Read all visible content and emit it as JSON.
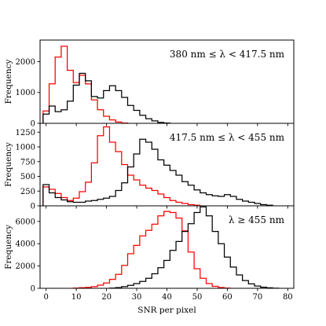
{
  "chart_data": {
    "type": "histogram",
    "x_label": "SNR per pixel",
    "x_ticks": [
      0,
      10,
      20,
      30,
      40,
      50,
      60,
      70,
      80
    ],
    "xlim": [
      -2,
      82
    ],
    "bin_width": 2,
    "colors": {
      "red": "#ff0000",
      "black": "#000000"
    },
    "panels": [
      {
        "annotation": "380 nm ≤ λ < 417.5 nm",
        "ylabel": "Frequency",
        "ylim": [
          0,
          2700
        ],
        "yticks": [
          0,
          1000,
          2000
        ],
        "series": [
          {
            "color": "red",
            "bins": [
              [
                -1,
                1,
                400
              ],
              [
                1,
                3,
                1280
              ],
              [
                3,
                5,
                2150
              ],
              [
                5,
                7,
                2500
              ],
              [
                7,
                9,
                1720
              ],
              [
                9,
                11,
                1320
              ],
              [
                11,
                13,
                1560
              ],
              [
                13,
                15,
                1280
              ],
              [
                15,
                17,
                760
              ],
              [
                17,
                19,
                440
              ],
              [
                19,
                21,
                230
              ],
              [
                21,
                23,
                110
              ],
              [
                23,
                25,
                40
              ],
              [
                25,
                27,
                10
              ]
            ]
          },
          {
            "color": "black",
            "bins": [
              [
                -1,
                1,
                300
              ],
              [
                1,
                3,
                560
              ],
              [
                3,
                5,
                380
              ],
              [
                5,
                7,
                440
              ],
              [
                7,
                9,
                720
              ],
              [
                9,
                11,
                1240
              ],
              [
                11,
                13,
                1620
              ],
              [
                13,
                15,
                1380
              ],
              [
                15,
                17,
                870
              ],
              [
                17,
                19,
                820
              ],
              [
                19,
                21,
                1060
              ],
              [
                21,
                23,
                1220
              ],
              [
                23,
                25,
                1060
              ],
              [
                25,
                27,
                840
              ],
              [
                27,
                29,
                580
              ],
              [
                29,
                31,
                420
              ],
              [
                31,
                33,
                260
              ],
              [
                33,
                35,
                150
              ],
              [
                35,
                37,
                80
              ],
              [
                37,
                39,
                30
              ],
              [
                39,
                41,
                10
              ]
            ]
          }
        ]
      },
      {
        "annotation": "417.5 nm ≤ λ < 455 nm",
        "ylabel": "Frequency",
        "ylim": [
          0,
          1400
        ],
        "yticks": [
          0,
          250,
          500,
          750,
          1000,
          1250
        ],
        "series": [
          {
            "color": "red",
            "bins": [
              [
                -1,
                1,
                320
              ],
              [
                1,
                3,
                280
              ],
              [
                3,
                5,
                210
              ],
              [
                5,
                7,
                140
              ],
              [
                7,
                9,
                90
              ],
              [
                9,
                11,
                130
              ],
              [
                11,
                13,
                240
              ],
              [
                13,
                15,
                400
              ],
              [
                15,
                17,
                730
              ],
              [
                17,
                19,
                1190
              ],
              [
                19,
                21,
                1340
              ],
              [
                21,
                23,
                1080
              ],
              [
                23,
                25,
                920
              ],
              [
                25,
                27,
                700
              ],
              [
                27,
                29,
                520
              ],
              [
                29,
                31,
                440
              ],
              [
                31,
                33,
                350
              ],
              [
                33,
                35,
                300
              ],
              [
                35,
                37,
                260
              ],
              [
                37,
                39,
                200
              ],
              [
                39,
                41,
                140
              ],
              [
                41,
                43,
                90
              ],
              [
                43,
                45,
                60
              ],
              [
                45,
                47,
                40
              ],
              [
                47,
                49,
                20
              ],
              [
                49,
                51,
                10
              ]
            ]
          },
          {
            "color": "black",
            "bins": [
              [
                -1,
                1,
                360
              ],
              [
                1,
                3,
                220
              ],
              [
                3,
                5,
                140
              ],
              [
                5,
                7,
                100
              ],
              [
                7,
                9,
                70
              ],
              [
                9,
                11,
                60
              ],
              [
                11,
                13,
                60
              ],
              [
                13,
                15,
                80
              ],
              [
                15,
                17,
                90
              ],
              [
                17,
                19,
                110
              ],
              [
                19,
                21,
                130
              ],
              [
                21,
                23,
                160
              ],
              [
                23,
                25,
                260
              ],
              [
                25,
                27,
                390
              ],
              [
                27,
                29,
                660
              ],
              [
                29,
                31,
                880
              ],
              [
                31,
                33,
                1130
              ],
              [
                33,
                35,
                1080
              ],
              [
                35,
                37,
                960
              ],
              [
                37,
                39,
                780
              ],
              [
                39,
                41,
                690
              ],
              [
                41,
                43,
                600
              ],
              [
                43,
                45,
                520
              ],
              [
                45,
                47,
                410
              ],
              [
                47,
                49,
                350
              ],
              [
                49,
                51,
                270
              ],
              [
                51,
                53,
                220
              ],
              [
                53,
                55,
                190
              ],
              [
                55,
                57,
                170
              ],
              [
                57,
                59,
                160
              ],
              [
                59,
                61,
                190
              ],
              [
                61,
                63,
                160
              ],
              [
                63,
                65,
                110
              ],
              [
                65,
                67,
                80
              ],
              [
                67,
                69,
                60
              ],
              [
                69,
                71,
                40
              ],
              [
                71,
                73,
                20
              ],
              [
                73,
                75,
                10
              ]
            ]
          }
        ]
      },
      {
        "annotation": "λ ≥ 455 nm",
        "ylabel": "Frequency",
        "ylim": [
          0,
          7400
        ],
        "yticks": [
          0,
          2000,
          4000,
          6000
        ],
        "series": [
          {
            "color": "red",
            "bins": [
              [
                9,
                11,
                20
              ],
              [
                11,
                13,
                50
              ],
              [
                13,
                15,
                80
              ],
              [
                15,
                17,
                150
              ],
              [
                17,
                19,
                280
              ],
              [
                19,
                21,
                480
              ],
              [
                21,
                23,
                800
              ],
              [
                23,
                25,
                1250
              ],
              [
                25,
                27,
                2050
              ],
              [
                27,
                29,
                3100
              ],
              [
                29,
                31,
                3850
              ],
              [
                31,
                33,
                4700
              ],
              [
                33,
                35,
                5200
              ],
              [
                35,
                37,
                5750
              ],
              [
                37,
                39,
                6500
              ],
              [
                39,
                41,
                6900
              ],
              [
                41,
                43,
                6800
              ],
              [
                43,
                45,
                6300
              ],
              [
                45,
                47,
                5150
              ],
              [
                47,
                49,
                3250
              ],
              [
                49,
                51,
                1750
              ],
              [
                51,
                53,
                900
              ],
              [
                53,
                55,
                420
              ],
              [
                55,
                57,
                180
              ],
              [
                57,
                59,
                70
              ],
              [
                59,
                61,
                20
              ]
            ]
          },
          {
            "color": "black",
            "bins": [
              [
                21,
                23,
                20
              ],
              [
                23,
                25,
                60
              ],
              [
                25,
                27,
                150
              ],
              [
                27,
                29,
                260
              ],
              [
                29,
                31,
                420
              ],
              [
                31,
                33,
                620
              ],
              [
                33,
                35,
                900
              ],
              [
                35,
                37,
                1300
              ],
              [
                37,
                39,
                1850
              ],
              [
                39,
                41,
                2500
              ],
              [
                41,
                43,
                3400
              ],
              [
                43,
                45,
                4200
              ],
              [
                45,
                47,
                5100
              ],
              [
                47,
                49,
                5800
              ],
              [
                49,
                51,
                6800
              ],
              [
                51,
                53,
                7300
              ],
              [
                53,
                55,
                6500
              ],
              [
                55,
                57,
                5100
              ],
              [
                57,
                59,
                4000
              ],
              [
                59,
                61,
                2800
              ],
              [
                61,
                63,
                1900
              ],
              [
                63,
                65,
                1200
              ],
              [
                65,
                67,
                700
              ],
              [
                67,
                69,
                400
              ],
              [
                69,
                71,
                200
              ],
              [
                71,
                73,
                100
              ],
              [
                73,
                75,
                40
              ],
              [
                75,
                77,
                10
              ]
            ]
          }
        ]
      }
    ]
  }
}
